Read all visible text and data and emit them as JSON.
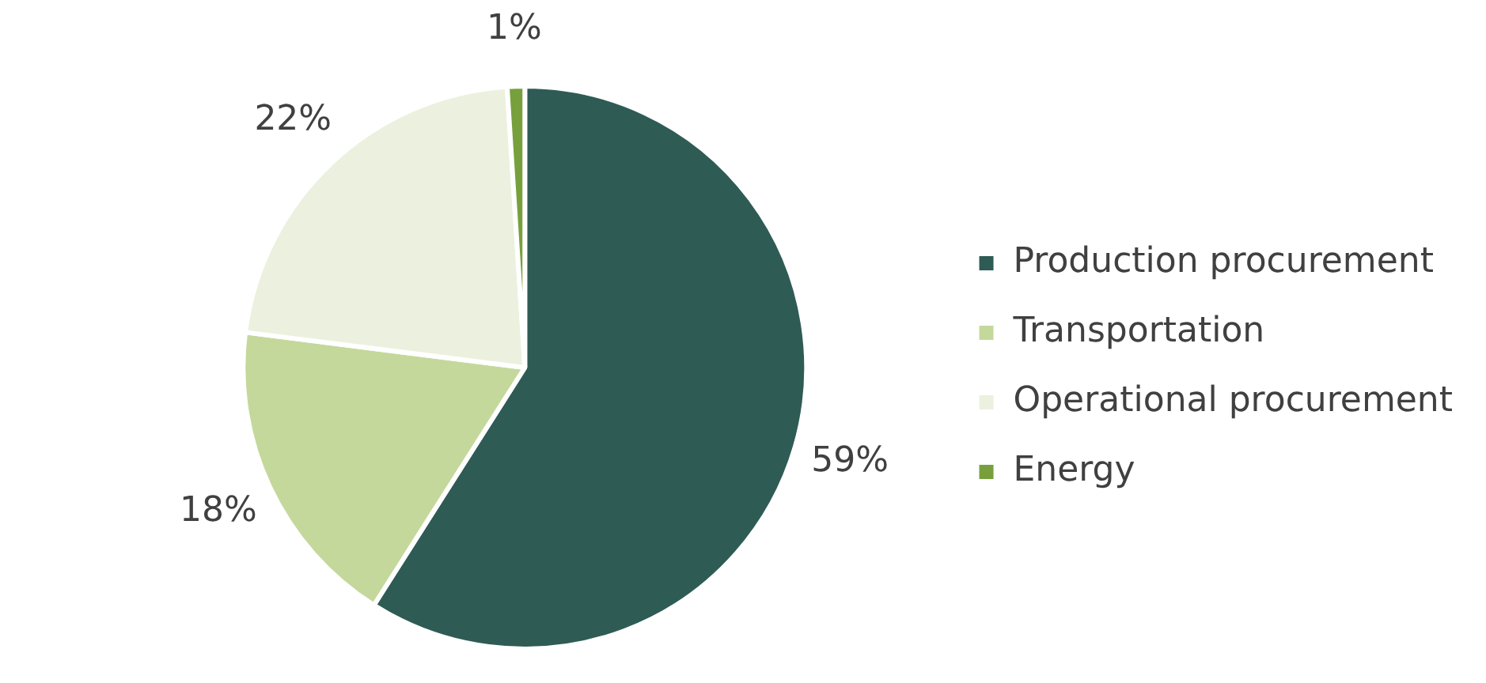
{
  "chart_data": {
    "type": "pie",
    "categories": [
      "Production procurement",
      "Transportation",
      "Operational procurement",
      "Energy"
    ],
    "values": [
      59,
      18,
      22,
      1
    ],
    "colors": [
      "#2f5b55",
      "#c5d89c",
      "#ebf1de",
      "#77a03c"
    ],
    "value_labels": [
      "59%",
      "18%",
      "22%",
      "1%"
    ],
    "legend": "right"
  }
}
